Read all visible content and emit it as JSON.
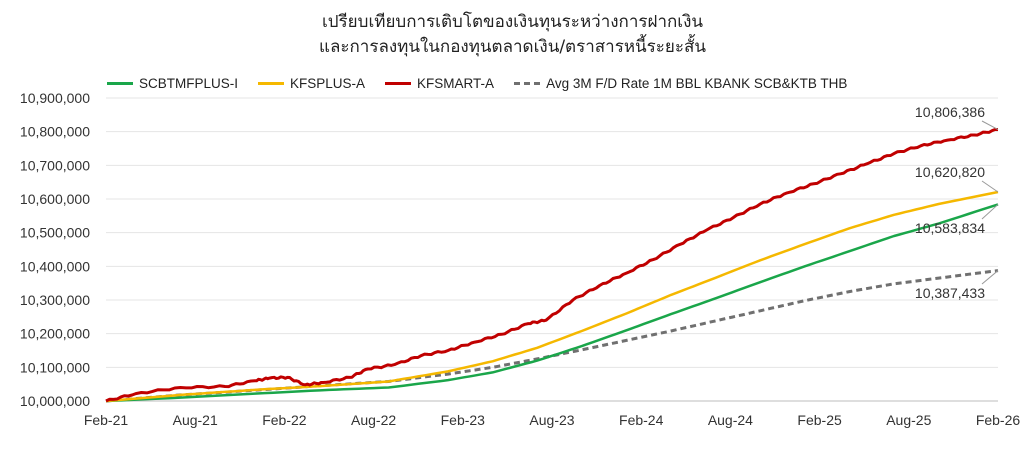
{
  "chart_data": {
    "type": "line",
    "title_line1": "เปรียบเทียบการเติบโตของเงินทุนระหว่างการฝากเงิน",
    "title_line2": "และการลงทุนในกองทุนตลาดเงิน/ตราสารหนี้ระยะสั้น",
    "xlabel": "",
    "ylabel": "",
    "x_ticks": [
      "Feb-21",
      "Aug-21",
      "Feb-22",
      "Aug-22",
      "Feb-23",
      "Aug-23",
      "Feb-24",
      "Aug-24",
      "Feb-25",
      "Aug-25",
      "Feb-26"
    ],
    "y_ticks": [
      "10,000,000",
      "10,100,000",
      "10,200,000",
      "10,300,000",
      "10,400,000",
      "10,500,000",
      "10,600,000",
      "10,700,000",
      "10,800,000",
      "10,900,000"
    ],
    "ylim": [
      10000000,
      10900000
    ],
    "grid": "horizontal",
    "legend_position": "top",
    "series": [
      {
        "name": "SCBTMFPLUS-I",
        "color": "#1aa64a",
        "dash": false,
        "x": [
          2021.083,
          2021.5,
          2021.917,
          2022.333,
          2022.667,
          2023.0,
          2023.25,
          2023.5,
          2023.75,
          2024.0,
          2024.25,
          2024.5,
          2024.75,
          2025.0,
          2025.25,
          2025.5,
          2025.75,
          2026.083
        ],
        "values": [
          10000000,
          10010000,
          10022000,
          10033000,
          10040000,
          10062000,
          10085000,
          10120000,
          10163000,
          10210000,
          10258000,
          10305000,
          10353000,
          10400000,
          10445000,
          10490000,
          10527000,
          10583834
        ]
      },
      {
        "name": "KFSPLUS-A",
        "color": "#f5b800",
        "dash": false,
        "x": [
          2021.083,
          2021.5,
          2021.917,
          2022.333,
          2022.667,
          2023.0,
          2023.25,
          2023.5,
          2023.75,
          2024.0,
          2024.25,
          2024.5,
          2024.75,
          2025.0,
          2025.25,
          2025.5,
          2025.75,
          2026.083
        ],
        "values": [
          10000000,
          10018000,
          10033000,
          10046000,
          10058000,
          10088000,
          10118000,
          10158000,
          10208000,
          10260000,
          10315000,
          10366000,
          10418000,
          10466000,
          10513000,
          10553000,
          10585000,
          10620820
        ]
      },
      {
        "name": "KFSMART-A",
        "color": "#c00000",
        "dash": false,
        "x": [
          2021.083,
          2021.25,
          2021.5,
          2021.75,
          2021.917,
          2022.0,
          2022.1,
          2022.2,
          2022.3,
          2022.45,
          2022.55,
          2022.7,
          2022.85,
          2023.0,
          2023.15,
          2023.3,
          2023.45,
          2023.55,
          2023.7,
          2023.85,
          2024.0,
          2024.15,
          2024.3,
          2024.45,
          2024.6,
          2024.75,
          2024.9,
          2025.05,
          2025.2,
          2025.35,
          2025.5,
          2025.65,
          2025.8,
          2025.95,
          2026.083
        ],
        "values": [
          10000000,
          10022000,
          10040000,
          10043000,
          10060000,
          10068000,
          10070000,
          10048000,
          10055000,
          10070000,
          10095000,
          10108000,
          10135000,
          10150000,
          10175000,
          10198000,
          10230000,
          10240000,
          10300000,
          10343000,
          10380000,
          10420000,
          10465000,
          10508000,
          10545000,
          10585000,
          10618000,
          10645000,
          10675000,
          10705000,
          10735000,
          10758000,
          10775000,
          10790000,
          10806386
        ]
      },
      {
        "name": "Avg 3M F/D Rate 1M BBL KBANK SCB&KTB THB",
        "color": "#707070",
        "dash": true,
        "x": [
          2021.083,
          2021.5,
          2021.917,
          2022.333,
          2022.667,
          2023.0,
          2023.25,
          2023.5,
          2023.75,
          2024.0,
          2024.25,
          2024.5,
          2024.75,
          2025.0,
          2025.25,
          2025.5,
          2025.75,
          2026.083
        ],
        "values": [
          10000000,
          10018000,
          10032000,
          10047000,
          10058000,
          10080000,
          10100000,
          10125000,
          10152000,
          10180000,
          10208000,
          10238000,
          10268000,
          10298000,
          10325000,
          10348000,
          10365000,
          10387433
        ]
      }
    ],
    "end_labels": [
      "10,806,386",
      "10,620,820",
      "10,583,834",
      "10,387,433"
    ]
  }
}
